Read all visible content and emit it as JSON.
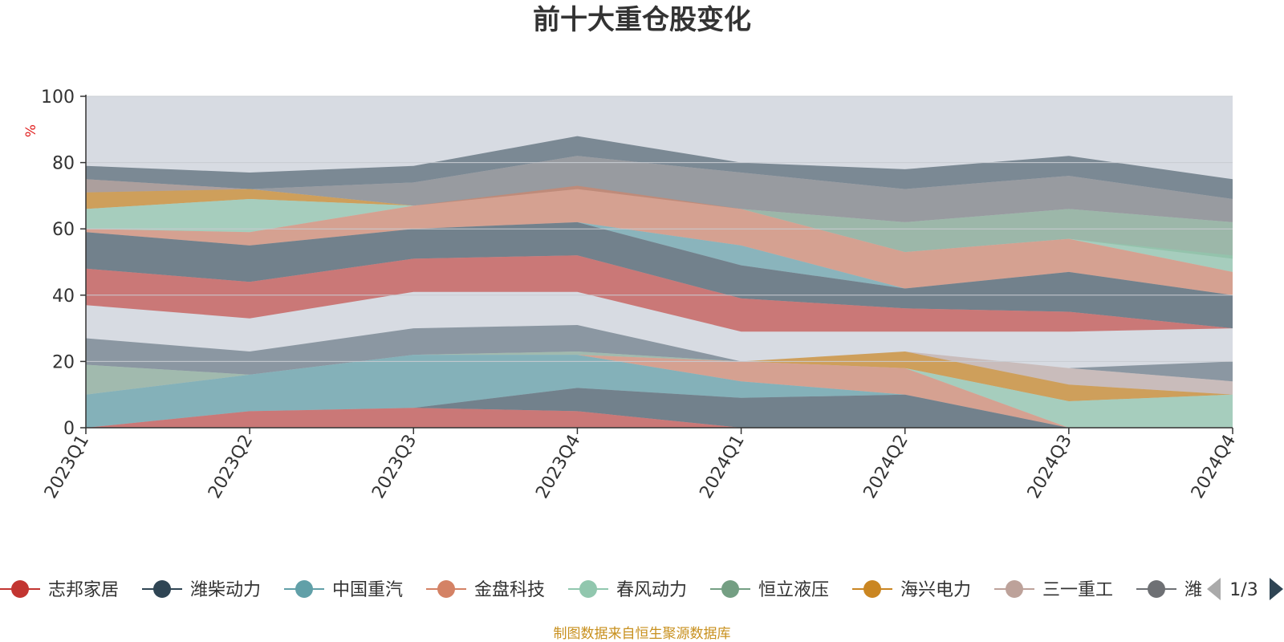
{
  "chart_data": {
    "type": "area",
    "title": "前十大重仓股变化",
    "ylabel": "%",
    "ylim": [
      0,
      100
    ],
    "yticks": [
      0,
      20,
      40,
      60,
      80,
      100
    ],
    "categories": [
      "2023Q1",
      "2023Q2",
      "2023Q3",
      "2023Q4",
      "2024Q1",
      "2024Q2",
      "2024Q3",
      "2024Q4"
    ],
    "series": [
      {
        "name": "志邦家居",
        "color": "#c23531"
      },
      {
        "name": "潍柴动力",
        "color": "#2f4554"
      },
      {
        "name": "中国重汽",
        "color": "#61a0a8"
      },
      {
        "name": "金盘科技",
        "color": "#d48265"
      },
      {
        "name": "春风动力",
        "color": "#91c7ae"
      },
      {
        "name": "恒立液压",
        "color": "#749f83"
      },
      {
        "name": "海兴电力",
        "color": "#ca8622"
      },
      {
        "name": "三一重工",
        "color": "#bda29a"
      },
      {
        "name": "潍柴重机",
        "color": "#6e7074"
      }
    ],
    "bands": [
      {
        "color": "#2f4554",
        "opacity": 0.55,
        "upper": [
          79,
          77,
          79,
          88,
          80,
          78,
          82,
          75
        ],
        "lower": [
          75,
          72,
          74,
          82,
          77,
          72,
          76,
          69
        ]
      },
      {
        "color": "#6e7074",
        "opacity": 0.6,
        "upper": [
          75,
          72,
          74,
          82,
          77,
          72,
          76,
          69
        ],
        "lower": [
          71,
          72,
          67,
          72,
          66,
          62,
          66,
          62
        ]
      },
      {
        "color": "#bda29a",
        "opacity": 0.55,
        "upper": [
          75,
          72,
          67,
          67,
          66,
          62,
          66,
          62
        ],
        "lower": [
          71,
          72,
          67,
          67,
          66,
          62,
          66,
          62
        ]
      },
      {
        "color": "#ca8622",
        "opacity": 0.7,
        "upper": [
          71,
          72,
          67,
          67,
          66,
          62,
          66,
          62
        ],
        "lower": [
          66,
          69,
          67,
          67,
          66,
          62,
          66,
          62
        ]
      },
      {
        "color": "#749f83",
        "opacity": 0.6,
        "upper": [
          66,
          69,
          67,
          67,
          66,
          62,
          66,
          62
        ],
        "lower": [
          66,
          69,
          67,
          67,
          66,
          53,
          57,
          51
        ]
      },
      {
        "color": "#91c7ae",
        "opacity": 0.7,
        "upper": [
          66,
          69,
          67,
          67,
          66,
          53,
          57,
          52
        ],
        "lower": [
          60,
          59,
          67,
          67,
          66,
          53,
          57,
          47
        ]
      },
      {
        "color": "#d48265",
        "opacity": 0.65,
        "upper": [
          60,
          59,
          67,
          73,
          66,
          53,
          57,
          47
        ],
        "lower": [
          59,
          55,
          60,
          62,
          55,
          42,
          47,
          40
        ]
      },
      {
        "color": "#61a0a8",
        "opacity": 0.65,
        "upper": [
          59,
          55,
          60,
          62,
          55,
          42,
          47,
          40
        ],
        "lower": [
          59,
          55,
          60,
          62,
          49,
          42,
          47,
          40
        ]
      },
      {
        "color": "#2f4554",
        "opacity": 0.6,
        "upper": [
          59,
          55,
          60,
          62,
          49,
          42,
          47,
          40
        ],
        "lower": [
          48,
          44,
          51,
          52,
          39,
          36,
          35,
          30
        ]
      },
      {
        "color": "#c23531",
        "opacity": 0.6,
        "upper": [
          48,
          44,
          51,
          52,
          39,
          36,
          35,
          30
        ],
        "lower": [
          37,
          33,
          41,
          41,
          29,
          29,
          29,
          30
        ]
      },
      {
        "color": "#2f4554",
        "opacity": 0.45,
        "upper": [
          27,
          23,
          30,
          31,
          20,
          23,
          18,
          20
        ],
        "lower": [
          19,
          16,
          22,
          23,
          20,
          23,
          18,
          14
        ]
      },
      {
        "color": "#bda29a",
        "opacity": 0.55,
        "upper": [
          19,
          16,
          22,
          23,
          20,
          23,
          18,
          14
        ],
        "lower": [
          19,
          16,
          22,
          23,
          20,
          23,
          13,
          10
        ]
      },
      {
        "color": "#ca8622",
        "opacity": 0.7,
        "upper": [
          19,
          16,
          22,
          23,
          20,
          23,
          13,
          10
        ],
        "lower": [
          19,
          16,
          22,
          23,
          20,
          18,
          8,
          10
        ]
      },
      {
        "color": "#749f83",
        "opacity": 0.55,
        "upper": [
          19,
          16,
          22,
          23,
          20,
          18,
          8,
          10
        ],
        "lower": [
          10,
          16,
          22,
          22,
          20,
          18,
          8,
          10
        ]
      },
      {
        "color": "#91c7ae",
        "opacity": 0.7,
        "upper": [
          10,
          16,
          22,
          22,
          20,
          18,
          8,
          10
        ],
        "lower": [
          10,
          16,
          22,
          22,
          20,
          18,
          0,
          0
        ]
      },
      {
        "color": "#d48265",
        "opacity": 0.65,
        "upper": [
          10,
          16,
          22,
          22,
          20,
          18,
          0,
          0
        ],
        "lower": [
          10,
          16,
          22,
          22,
          14,
          10,
          0,
          0
        ]
      },
      {
        "color": "#61a0a8",
        "opacity": 0.7,
        "upper": [
          10,
          16,
          22,
          22,
          14,
          10,
          0,
          0
        ],
        "lower": [
          0,
          5,
          6,
          12,
          9,
          10,
          0,
          0
        ]
      },
      {
        "color": "#2f4554",
        "opacity": 0.6,
        "upper": [
          0,
          5,
          6,
          12,
          9,
          10,
          0,
          0
        ],
        "lower": [
          0,
          5,
          6,
          5,
          0,
          0,
          0,
          0
        ]
      },
      {
        "color": "#c23531",
        "opacity": 0.6,
        "upper": [
          0,
          5,
          6,
          5,
          0,
          0,
          0,
          0
        ],
        "lower": [
          0,
          0,
          0,
          0,
          0,
          0,
          0,
          0
        ]
      }
    ]
  },
  "legend": {
    "items": [
      {
        "label": "志邦家居",
        "color": "#c23531"
      },
      {
        "label": "潍柴动力",
        "color": "#2f4554"
      },
      {
        "label": "中国重汽",
        "color": "#61a0a8"
      },
      {
        "label": "金盘科技",
        "color": "#d48265"
      },
      {
        "label": "春风动力",
        "color": "#91c7ae"
      },
      {
        "label": "恒立液压",
        "color": "#749f83"
      },
      {
        "label": "海兴电力",
        "color": "#ca8622"
      },
      {
        "label": "三一重工",
        "color": "#bda29a"
      },
      {
        "label": "潍",
        "color": "#6e7074"
      }
    ],
    "page": "1/3"
  },
  "footer": "制图数据来自恒生聚源数据库",
  "colors": {
    "plot_background": "#d7dbe2",
    "axis": "#333333",
    "grid": "#c9ccd2",
    "unit": "#e01f1f",
    "footer": "#c8901e",
    "nav_prev": "#aaaaaa",
    "nav_next": "#2f4554"
  }
}
